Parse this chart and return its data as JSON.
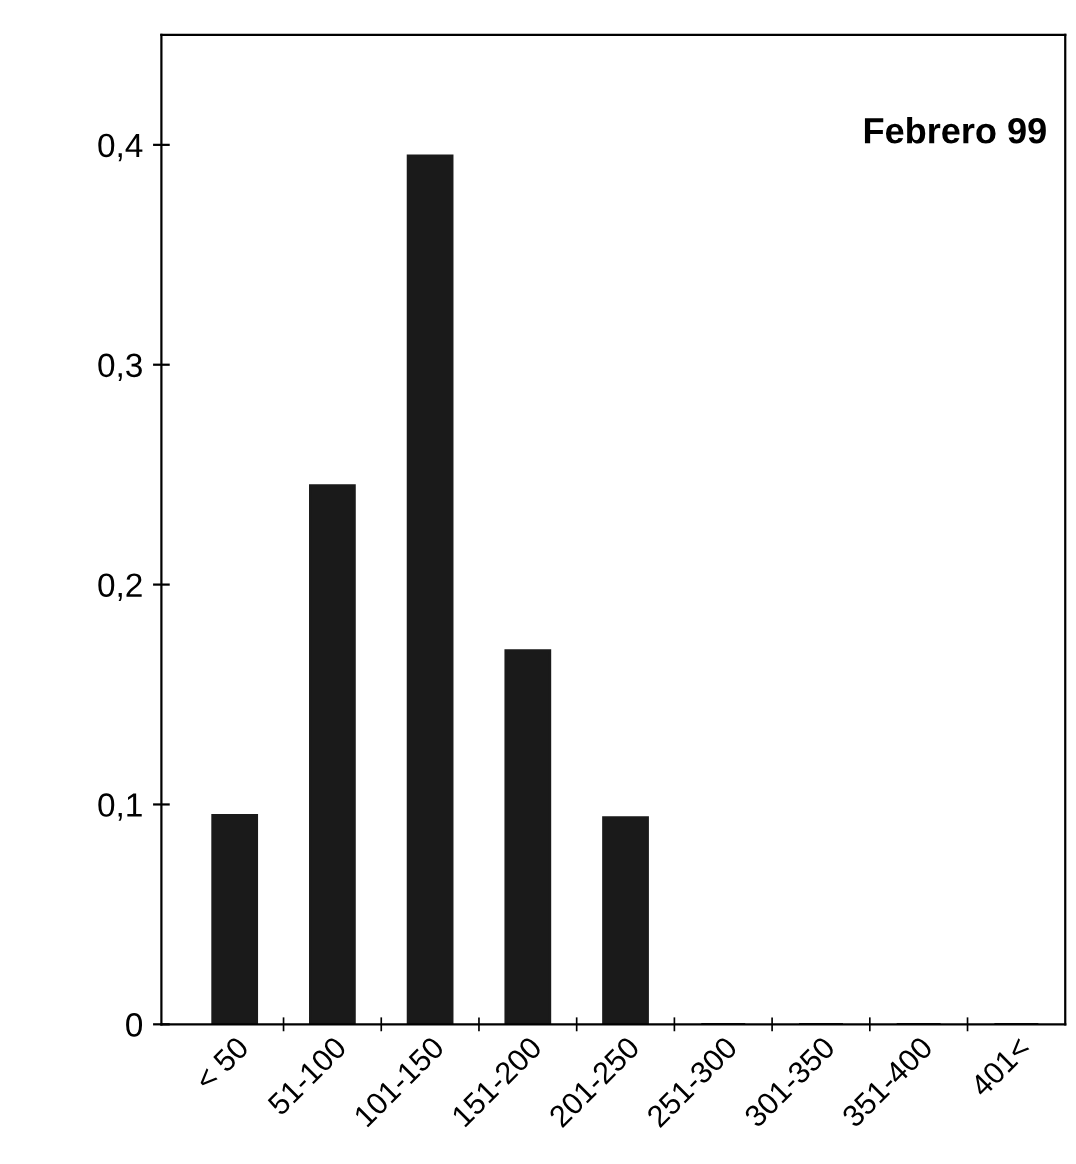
{
  "chart_data": {
    "type": "bar",
    "categories": [
      "< 50",
      "51-100",
      "101-150",
      "151-200",
      "201-250",
      "251-300",
      "301-350",
      "351-400",
      "401<"
    ],
    "values": [
      0.095,
      0.245,
      0.395,
      0.17,
      0.094,
      0,
      0,
      0,
      0
    ],
    "color": "#1a1a1a",
    "ylim": [
      0,
      0.45
    ],
    "yticks": [
      0,
      {
        "value": 0.1,
        "label": "0,1"
      },
      {
        "value": 0.2,
        "label": "0,2"
      },
      {
        "value": 0.3,
        "label": "0,3"
      },
      {
        "value": 0.4,
        "label": "0,4"
      }
    ],
    "annotations": [
      "Febrero 99"
    ],
    "grid": false
  }
}
